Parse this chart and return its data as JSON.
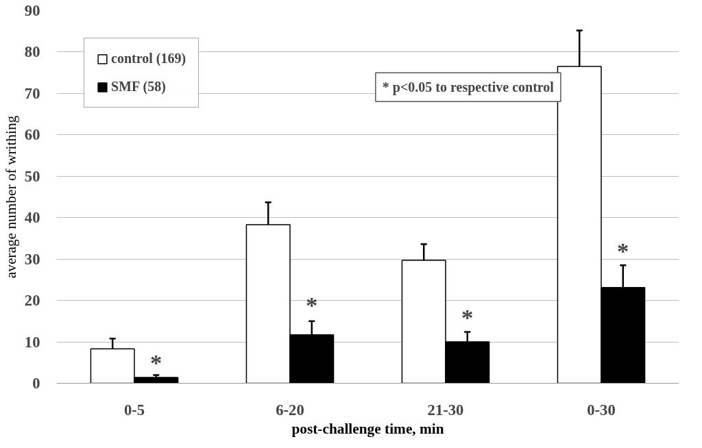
{
  "chart_data": {
    "type": "bar",
    "xlabel": "post-challenge time, min",
    "ylabel": "average number of writhing",
    "categories": [
      "0-5",
      "6-20",
      "21-30",
      "0-30"
    ],
    "series": [
      {
        "name": "control (169)",
        "color": "#ffffff",
        "values": [
          8.3,
          38.3,
          29.7,
          76.5
        ],
        "errors": [
          [
            8.3,
            10.8
          ],
          [
            38.3,
            43.7
          ],
          [
            29.7,
            33.6
          ],
          [
            76.5,
            85.2
          ]
        ]
      },
      {
        "name": "SMF (58)",
        "color": "#000000",
        "values": [
          1.4,
          11.7,
          10.0,
          23.1
        ],
        "errors": [
          [
            1.4,
            2.0
          ],
          [
            11.7,
            15.0
          ],
          [
            10.0,
            12.4
          ],
          [
            23.1,
            28.5
          ]
        ]
      }
    ],
    "ylim": [
      0,
      90
    ],
    "yticks": [
      0,
      10,
      20,
      30,
      40,
      50,
      60,
      70,
      80,
      90
    ],
    "grid": "y",
    "legend": "top left",
    "annotations": [
      "* p<0.05 to respective control",
      {
        "text": "*",
        "x": "0-5",
        "y": 5
      },
      {
        "text": "*",
        "x": "6-20",
        "y": 19
      },
      {
        "text": "*",
        "x": "21-30",
        "y": 16
      },
      {
        "text": "*",
        "x": "0-30",
        "y": 32
      }
    ]
  }
}
